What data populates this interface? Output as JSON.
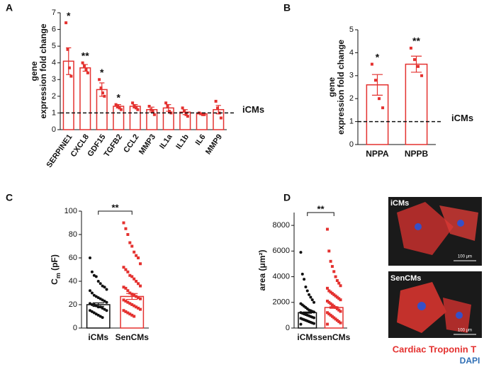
{
  "chart_data": [
    {
      "type": "bar",
      "panel": "A",
      "ylabel": [
        "gene",
        "expression fold change"
      ],
      "categories": [
        "SERPINE1",
        "CXCL8",
        "GDF15",
        "TGFB2",
        "CCL2",
        "MMP3",
        "IL1a",
        "IL1b",
        "IL6",
        "MMP9"
      ],
      "values": [
        4.1,
        3.7,
        2.4,
        1.4,
        1.4,
        1.2,
        1.3,
        1.05,
        0.95,
        1.2
      ],
      "errors": [
        0.8,
        0.2,
        0.4,
        0.1,
        0.1,
        0.15,
        0.2,
        0.15,
        0.05,
        0.25
      ],
      "points": [
        [
          6.4,
          4.8,
          3.7,
          3.2
        ],
        [
          4.0,
          3.8,
          3.6,
          3.4
        ],
        [
          3.0,
          2.5,
          2.2,
          2.0
        ],
        [
          1.5,
          1.4,
          1.3,
          1.2
        ],
        [
          1.6,
          1.4,
          1.3,
          1.2
        ],
        [
          1.4,
          1.2,
          1.1,
          0.9
        ],
        [
          1.6,
          1.4,
          1.1,
          1.0
        ],
        [
          1.3,
          1.1,
          0.9,
          0.8
        ],
        [
          1.0,
          0.95,
          0.9,
          0.9
        ],
        [
          1.7,
          1.3,
          1.0,
          0.7
        ]
      ],
      "annotations": [
        "*",
        "**",
        "*",
        "*",
        null,
        null,
        null,
        null,
        null,
        null
      ],
      "colors": [
        "#e4312f"
      ],
      "ylim": [
        0,
        7
      ],
      "yticks": [
        0,
        1,
        2,
        3,
        4,
        5,
        6,
        7
      ],
      "reference_line": {
        "value": 1,
        "label": "iCMs"
      }
    },
    {
      "type": "bar",
      "panel": "B",
      "ylabel": [
        "gene",
        "expression fold change"
      ],
      "categories": [
        "NPPA",
        "NPPB"
      ],
      "values": [
        2.6,
        3.5
      ],
      "errors": [
        0.45,
        0.35
      ],
      "points": [
        [
          3.5,
          2.8,
          2.0,
          1.6
        ],
        [
          4.2,
          3.7,
          3.4,
          3.0
        ]
      ],
      "annotations": [
        "*",
        "**"
      ],
      "colors": [
        "#e4312f"
      ],
      "ylim": [
        0,
        5
      ],
      "yticks": [
        0,
        1,
        2,
        3,
        4,
        5
      ],
      "reference_line": {
        "value": 1,
        "label": "iCMs"
      }
    },
    {
      "type": "bar",
      "panel": "C",
      "ylabel": {
        "main": "C",
        "sub": "m",
        "unit": " (pF)"
      },
      "categories": [
        "iCMs",
        "SenCMs"
      ],
      "values": [
        20,
        27
      ],
      "errors": [
        1.5,
        2.5
      ],
      "points": [
        [
          60,
          48,
          45,
          44,
          40,
          38,
          36,
          35,
          33,
          32,
          30,
          28,
          27,
          26,
          25,
          24,
          23,
          22,
          21,
          20,
          20,
          19,
          18,
          18,
          17,
          16,
          15,
          15,
          14,
          13,
          12,
          11,
          10,
          9
        ],
        [
          90,
          85,
          80,
          73,
          70,
          65,
          62,
          60,
          55,
          52,
          50,
          48,
          45,
          44,
          42,
          40,
          38,
          36,
          35,
          34,
          32,
          30,
          29,
          28,
          27,
          26,
          25,
          24,
          23,
          22,
          21,
          20,
          19,
          18,
          17,
          16,
          15,
          14,
          13,
          12,
          11,
          10
        ]
      ],
      "colors": [
        "#111111",
        "#e4312f"
      ],
      "ylim": [
        0,
        100
      ],
      "yticks": [
        0,
        20,
        40,
        60,
        80,
        100
      ],
      "bracket": "**"
    },
    {
      "type": "bar",
      "panel": "D",
      "ylabel": "area (μm²)",
      "categories": [
        "iCMs",
        "senCMs"
      ],
      "values": [
        1200,
        1600
      ],
      "errors": [
        50,
        60
      ],
      "points": [
        [
          5900,
          4200,
          3800,
          3200,
          2900,
          2600,
          2400,
          2200,
          2000,
          1900,
          1800,
          1700,
          1600,
          1500,
          1400,
          1350,
          1300,
          1250,
          1200,
          1150,
          1100,
          1050,
          1000,
          950,
          900,
          850,
          800,
          750,
          700,
          650,
          600,
          550,
          500,
          450,
          400,
          350,
          300
        ],
        [
          7700,
          6000,
          5200,
          4800,
          4400,
          4000,
          3700,
          3500,
          3300,
          3100,
          2900,
          2800,
          2700,
          2600,
          2500,
          2400,
          2300,
          2200,
          2100,
          2000,
          1900,
          1800,
          1700,
          1600,
          1500,
          1400,
          1300,
          1200,
          1100,
          1000,
          900,
          800,
          700,
          600,
          500,
          400,
          300
        ]
      ],
      "colors": [
        "#111111",
        "#e4312f"
      ],
      "ylim": [
        0,
        9000
      ],
      "yticks": [
        0,
        2000,
        4000,
        6000,
        8000
      ],
      "bracket": "**"
    }
  ],
  "images": [
    {
      "label": "iCMs",
      "scale": "100 μm"
    },
    {
      "label": "SenCMs",
      "scale": "100 μm"
    }
  ],
  "stain_legend": [
    "Cardiac Troponin T",
    "DAPI"
  ]
}
